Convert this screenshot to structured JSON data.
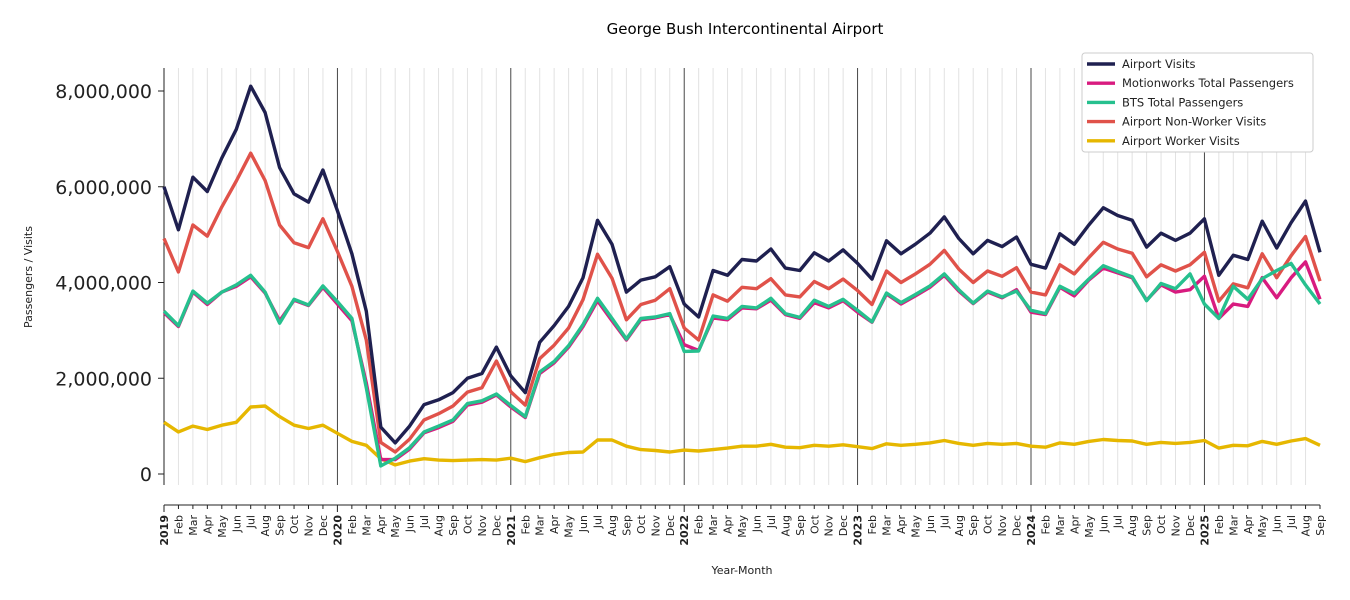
{
  "chart_data": {
    "type": "line",
    "title": "George Bush Intercontinental Airport",
    "xlabel": "Year-Month",
    "ylabel": "Passengers / Visits",
    "ylim": [
      -250000,
      8500000
    ],
    "yticks": [
      0,
      2000000,
      4000000,
      6000000,
      8000000
    ],
    "ytick_labels": [
      "0",
      "2,000,000",
      "4,000,000",
      "6,000,000",
      "8,000,000"
    ],
    "x_tick_labels": [
      "2019",
      "Feb",
      "Mar",
      "Apr",
      "May",
      "Jun",
      "Jul",
      "Aug",
      "Sep",
      "Oct",
      "Nov",
      "Dec",
      "2020",
      "Feb",
      "Mar",
      "Apr",
      "May",
      "Jun",
      "Jul",
      "Aug",
      "Sep",
      "Oct",
      "Nov",
      "Dec",
      "2021",
      "Feb",
      "Mar",
      "Apr",
      "May",
      "Jun",
      "Jul",
      "Aug",
      "Sep",
      "Oct",
      "Nov",
      "Dec",
      "2022",
      "Feb",
      "Mar",
      "Apr",
      "May",
      "Jun",
      "Jul",
      "Aug",
      "Sep",
      "Oct",
      "Nov",
      "Dec",
      "2023",
      "Feb",
      "Mar",
      "Apr",
      "May",
      "Jun",
      "Jul",
      "Aug",
      "Sep",
      "Oct",
      "Nov",
      "Dec",
      "2024",
      "Feb",
      "Mar",
      "Apr",
      "May",
      "Jun",
      "Jul",
      "Aug",
      "Sep",
      "Oct",
      "Nov",
      "Dec",
      "2025",
      "Feb",
      "Mar",
      "Apr",
      "May",
      "Jun",
      "Jul",
      "Aug",
      "Sep"
    ],
    "grid": "vertical monthly lines, dark lines at each January",
    "legend_position": "top-right",
    "series_unit_millions": true,
    "series": [
      {
        "name": "Airport Visits",
        "color": "#1f2050",
        "values": [
          6.0,
          5.1,
          6.2,
          5.9,
          6.6,
          7.2,
          8.1,
          7.55,
          6.4,
          5.85,
          5.68,
          6.35,
          5.5,
          4.6,
          3.4,
          0.98,
          0.65,
          1.0,
          1.45,
          1.55,
          1.7,
          2.0,
          2.1,
          2.65,
          2.05,
          1.7,
          2.75,
          3.1,
          3.5,
          4.1,
          5.3,
          4.8,
          3.8,
          4.05,
          4.12,
          4.33,
          3.55,
          3.28,
          4.25,
          4.15,
          4.48,
          4.45,
          4.7,
          4.3,
          4.25,
          4.62,
          4.45,
          4.68,
          4.4,
          4.07,
          4.87,
          4.6,
          4.8,
          5.03,
          5.37,
          4.92,
          4.6,
          4.88,
          4.75,
          4.95,
          4.38,
          4.3,
          5.02,
          4.8,
          5.2,
          5.56,
          5.4,
          5.3,
          4.74,
          5.03,
          4.88,
          5.03,
          5.33,
          4.15,
          4.57,
          4.48,
          5.28,
          4.72,
          5.25,
          5.7,
          4.63
        ]
      },
      {
        "name": "Motionworks Total Passengers",
        "color": "#d81b7f",
        "values": [
          3.37,
          3.08,
          3.8,
          3.54,
          3.8,
          3.92,
          4.12,
          3.78,
          3.2,
          3.63,
          3.52,
          3.9,
          3.55,
          3.2,
          1.9,
          0.3,
          0.3,
          0.52,
          0.86,
          0.97,
          1.1,
          1.44,
          1.5,
          1.65,
          1.4,
          1.18,
          2.1,
          2.32,
          2.65,
          3.08,
          3.62,
          3.2,
          2.8,
          3.22,
          3.26,
          3.33,
          2.7,
          2.58,
          3.26,
          3.22,
          3.47,
          3.45,
          3.63,
          3.33,
          3.25,
          3.58,
          3.47,
          3.62,
          3.38,
          3.17,
          3.76,
          3.55,
          3.72,
          3.9,
          4.15,
          3.82,
          3.56,
          3.8,
          3.68,
          3.85,
          3.38,
          3.33,
          3.9,
          3.72,
          4.05,
          4.3,
          4.2,
          4.1,
          3.63,
          3.95,
          3.8,
          3.85,
          4.13,
          3.25,
          3.55,
          3.5,
          4.1,
          3.68,
          4.1,
          4.43,
          3.65
        ]
      },
      {
        "name": "BTS Total Passengers",
        "color": "#26c08e",
        "values": [
          3.4,
          3.1,
          3.82,
          3.57,
          3.8,
          3.95,
          4.15,
          3.8,
          3.15,
          3.65,
          3.53,
          3.93,
          3.6,
          3.25,
          1.8,
          0.17,
          0.33,
          0.55,
          0.88,
          1.0,
          1.13,
          1.47,
          1.53,
          1.67,
          1.43,
          1.2,
          2.13,
          2.35,
          2.68,
          3.12,
          3.67,
          3.25,
          2.82,
          3.25,
          3.28,
          3.35,
          2.56,
          2.57,
          3.3,
          3.25,
          3.5,
          3.47,
          3.67,
          3.35,
          3.27,
          3.63,
          3.5,
          3.65,
          3.42,
          3.18,
          3.78,
          3.58,
          3.75,
          3.93,
          4.18,
          3.85,
          3.57,
          3.82,
          3.7,
          3.82,
          3.42,
          3.35,
          3.92,
          3.77,
          4.07,
          4.35,
          4.23,
          4.12,
          3.62,
          3.98,
          3.87,
          4.18,
          3.55,
          3.25,
          3.92,
          3.65,
          4.08,
          4.25,
          4.4,
          3.95,
          3.55
        ]
      },
      {
        "name": "Airport Non-Worker Visits",
        "color": "#e0524a",
        "values": [
          4.92,
          4.22,
          5.2,
          4.97,
          5.58,
          6.12,
          6.7,
          6.13,
          5.2,
          4.83,
          4.73,
          5.33,
          4.65,
          3.92,
          2.8,
          0.66,
          0.46,
          0.73,
          1.13,
          1.26,
          1.42,
          1.71,
          1.8,
          2.36,
          1.72,
          1.44,
          2.41,
          2.69,
          3.05,
          3.64,
          4.59,
          4.09,
          3.22,
          3.54,
          3.63,
          3.87,
          3.05,
          2.8,
          3.74,
          3.61,
          3.9,
          3.87,
          4.08,
          3.74,
          3.7,
          4.02,
          3.87,
          4.07,
          3.83,
          3.54,
          4.24,
          4.0,
          4.18,
          4.38,
          4.67,
          4.28,
          4.0,
          4.24,
          4.13,
          4.31,
          3.8,
          3.74,
          4.37,
          4.18,
          4.52,
          4.84,
          4.7,
          4.61,
          4.12,
          4.37,
          4.24,
          4.37,
          4.63,
          3.61,
          3.97,
          3.89,
          4.6,
          4.1,
          4.56,
          4.96,
          4.03
        ]
      },
      {
        "name": "Airport Worker Visits",
        "color": "#e6b700",
        "values": [
          1.08,
          0.88,
          1.0,
          0.93,
          1.02,
          1.08,
          1.4,
          1.42,
          1.2,
          1.02,
          0.95,
          1.02,
          0.85,
          0.68,
          0.6,
          0.32,
          0.19,
          0.27,
          0.32,
          0.29,
          0.28,
          0.29,
          0.3,
          0.29,
          0.33,
          0.26,
          0.34,
          0.41,
          0.45,
          0.46,
          0.71,
          0.71,
          0.58,
          0.51,
          0.49,
          0.46,
          0.5,
          0.48,
          0.51,
          0.54,
          0.58,
          0.58,
          0.62,
          0.56,
          0.55,
          0.6,
          0.58,
          0.61,
          0.57,
          0.53,
          0.63,
          0.6,
          0.62,
          0.65,
          0.7,
          0.64,
          0.6,
          0.64,
          0.62,
          0.64,
          0.58,
          0.56,
          0.65,
          0.62,
          0.68,
          0.72,
          0.7,
          0.69,
          0.62,
          0.66,
          0.64,
          0.66,
          0.7,
          0.54,
          0.6,
          0.59,
          0.68,
          0.62,
          0.69,
          0.74,
          0.6
        ]
      }
    ]
  }
}
